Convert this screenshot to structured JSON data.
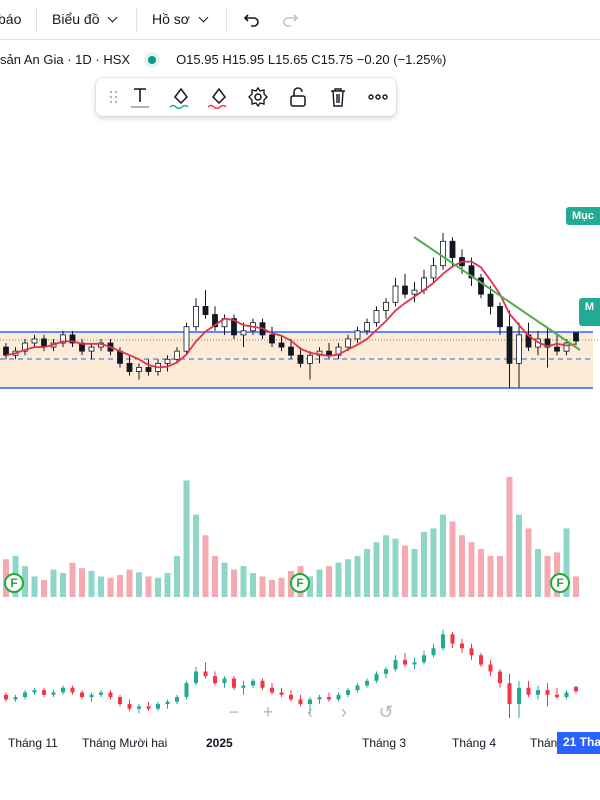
{
  "toolbar": {
    "alerts_label": "báo",
    "chart_menu_label": "Biểu đồ",
    "profile_menu_label": "Hồ sơ",
    "undo_icon": "undo-icon",
    "redo_icon": "redo-icon"
  },
  "legend": {
    "symbol_text": "sản An Gia · 1D · HSX",
    "ohlc_text": "O15.95  H15.95  L15.65  C15.75  −0.20 (−1.25%)"
  },
  "drawing_toolbar": {
    "icons": [
      "drag-handle-icon",
      "text-icon",
      "line-color-icon",
      "fill-color-icon",
      "settings-icon",
      "unlock-icon",
      "delete-icon",
      "more-icon"
    ]
  },
  "right_tags": {
    "tag1": "Mục",
    "tag2": "M"
  },
  "dividend_badge": "F",
  "xaxis_labels": [
    "Tháng 11",
    "Tháng Mười hai",
    "2025",
    "Tháng 3",
    "Tháng 4",
    "Thán"
  ],
  "current_date_label": "21 Tha",
  "colors": {
    "up": "#22ab94",
    "down": "#f23645",
    "ma_line": "#e0334d",
    "trendline": "#4caf50",
    "band_fill": "#fce8cf",
    "band_lines": "#2962ff"
  },
  "chart_data": {
    "type": "candlestick",
    "price_band": {
      "upper": 15.95,
      "middle": 15.5,
      "lower": 14.95
    },
    "ohlc_last": {
      "open": 15.95,
      "high": 15.95,
      "low": 15.65,
      "close": 15.75,
      "change": -0.2,
      "change_pct": -1.25
    },
    "candles": [
      [
        15.6,
        15.7,
        15.3,
        15.4
      ],
      [
        15.4,
        15.6,
        15.3,
        15.5
      ],
      [
        15.5,
        15.8,
        15.4,
        15.7
      ],
      [
        15.7,
        15.9,
        15.6,
        15.8
      ],
      [
        15.8,
        15.9,
        15.5,
        15.6
      ],
      [
        15.6,
        15.8,
        15.5,
        15.7
      ],
      [
        15.7,
        16.0,
        15.6,
        15.9
      ],
      [
        15.9,
        16.0,
        15.6,
        15.7
      ],
      [
        15.7,
        15.8,
        15.4,
        15.5
      ],
      [
        15.5,
        15.7,
        15.3,
        15.6
      ],
      [
        15.6,
        15.8,
        15.5,
        15.7
      ],
      [
        15.7,
        15.8,
        15.4,
        15.5
      ],
      [
        15.5,
        15.6,
        15.1,
        15.2
      ],
      [
        15.2,
        15.4,
        14.9,
        15.0
      ],
      [
        15.0,
        15.2,
        14.8,
        15.1
      ],
      [
        15.1,
        15.3,
        14.9,
        15.0
      ],
      [
        15.0,
        15.3,
        14.9,
        15.2
      ],
      [
        15.2,
        15.4,
        15.0,
        15.3
      ],
      [
        15.3,
        15.6,
        15.2,
        15.5
      ],
      [
        15.5,
        16.2,
        15.4,
        16.1
      ],
      [
        16.1,
        16.8,
        16.0,
        16.6
      ],
      [
        16.6,
        17.0,
        16.3,
        16.4
      ],
      [
        16.4,
        16.6,
        16.0,
        16.1
      ],
      [
        16.1,
        16.4,
        15.9,
        16.3
      ],
      [
        16.3,
        16.4,
        15.8,
        15.9
      ],
      [
        15.9,
        16.2,
        15.6,
        16.0
      ],
      [
        16.0,
        16.3,
        15.9,
        16.2
      ],
      [
        16.2,
        16.3,
        15.8,
        15.9
      ],
      [
        15.9,
        16.1,
        15.6,
        15.7
      ],
      [
        15.7,
        15.9,
        15.5,
        15.6
      ],
      [
        15.6,
        15.8,
        15.3,
        15.4
      ],
      [
        15.4,
        15.6,
        15.1,
        15.2
      ],
      [
        15.2,
        15.5,
        14.8,
        15.4
      ],
      [
        15.4,
        15.6,
        15.2,
        15.5
      ],
      [
        15.5,
        15.7,
        15.3,
        15.4
      ],
      [
        15.4,
        15.7,
        15.3,
        15.6
      ],
      [
        15.6,
        15.9,
        15.5,
        15.8
      ],
      [
        15.8,
        16.1,
        15.7,
        16.0
      ],
      [
        16.0,
        16.3,
        15.9,
        16.2
      ],
      [
        16.2,
        16.6,
        16.1,
        16.5
      ],
      [
        16.5,
        16.8,
        16.3,
        16.7
      ],
      [
        16.7,
        17.3,
        16.6,
        17.1
      ],
      [
        17.1,
        17.4,
        16.8,
        16.9
      ],
      [
        16.9,
        17.2,
        16.7,
        17.0
      ],
      [
        17.0,
        17.5,
        16.9,
        17.3
      ],
      [
        17.3,
        17.8,
        17.2,
        17.6
      ],
      [
        17.6,
        18.4,
        17.5,
        18.2
      ],
      [
        18.2,
        18.3,
        17.6,
        17.8
      ],
      [
        17.8,
        18.0,
        17.4,
        17.6
      ],
      [
        17.6,
        17.8,
        17.1,
        17.3
      ],
      [
        17.3,
        17.4,
        16.8,
        16.9
      ],
      [
        16.9,
        17.1,
        16.4,
        16.6
      ],
      [
        16.6,
        16.7,
        15.9,
        16.1
      ],
      [
        16.1,
        16.5,
        14.6,
        15.2
      ],
      [
        15.2,
        16.2,
        14.6,
        15.9
      ],
      [
        15.9,
        16.2,
        15.5,
        15.6
      ],
      [
        15.6,
        16.0,
        15.4,
        15.8
      ],
      [
        15.8,
        16.1,
        15.1,
        15.6
      ],
      [
        15.6,
        15.9,
        15.4,
        15.5
      ],
      [
        15.5,
        15.8,
        15.4,
        15.7
      ],
      [
        15.95,
        15.95,
        15.65,
        15.75
      ]
    ],
    "volume": [
      55,
      60,
      45,
      30,
      25,
      40,
      35,
      50,
      42,
      38,
      30,
      28,
      32,
      40,
      36,
      30,
      28,
      35,
      60,
      170,
      120,
      90,
      60,
      50,
      40,
      45,
      35,
      30,
      25,
      28,
      38,
      45,
      30,
      40,
      45,
      50,
      55,
      60,
      70,
      80,
      90,
      85,
      75,
      70,
      95,
      100,
      120,
      110,
      90,
      80,
      70,
      60,
      60,
      175,
      120,
      100,
      70,
      60,
      65,
      100,
      30
    ]
  }
}
